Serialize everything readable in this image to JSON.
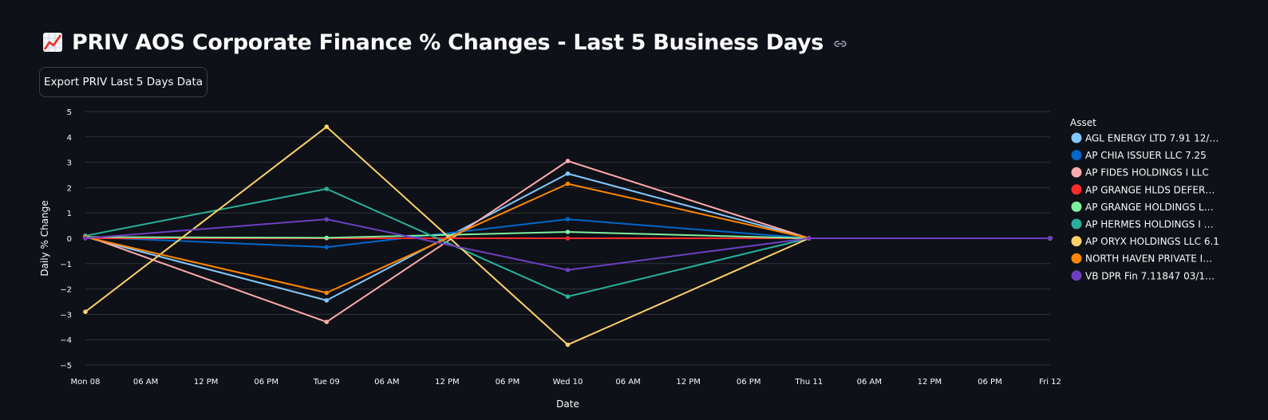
{
  "header": {
    "title": "PRIV AOS Corporate Finance % Changes - Last 5 Business Days",
    "emoji_icon": "chart-increasing-icon",
    "link_icon": "link-icon"
  },
  "toolbar": {
    "export_label": "Export PRIV Last 5 Days Data"
  },
  "chart_data": {
    "type": "line",
    "title": "",
    "xlabel": "Date",
    "ylabel": "Daily % Change",
    "ylim": [
      -5,
      5
    ],
    "yticks": [
      -5,
      -4,
      -3,
      -2,
      -1,
      0,
      1,
      2,
      3,
      4,
      5
    ],
    "ytick_labels": [
      "−5",
      "−4",
      "−3",
      "−2",
      "−1",
      "0",
      "1",
      "2",
      "3",
      "4",
      "5"
    ],
    "grid": true,
    "x_day_range": [
      0,
      4
    ],
    "xticks": [
      {
        "day": 0,
        "label": "Mon 08"
      },
      {
        "day": 0.25,
        "label": "06 AM"
      },
      {
        "day": 0.5,
        "label": "12 PM"
      },
      {
        "day": 0.75,
        "label": "06 PM"
      },
      {
        "day": 1,
        "label": "Tue 09"
      },
      {
        "day": 1.25,
        "label": "06 AM"
      },
      {
        "day": 1.5,
        "label": "12 PM"
      },
      {
        "day": 1.75,
        "label": "06 PM"
      },
      {
        "day": 2,
        "label": "Wed 10"
      },
      {
        "day": 2.25,
        "label": "06 AM"
      },
      {
        "day": 2.5,
        "label": "12 PM"
      },
      {
        "day": 2.75,
        "label": "06 PM"
      },
      {
        "day": 3,
        "label": "Thu 11"
      },
      {
        "day": 3.25,
        "label": "06 AM"
      },
      {
        "day": 3.5,
        "label": "12 PM"
      },
      {
        "day": 3.75,
        "label": "06 PM"
      },
      {
        "day": 4,
        "label": "Fri 12"
      }
    ],
    "x": [
      0,
      1,
      2,
      3,
      4
    ],
    "legend_title": "Asset",
    "legend_position": "right",
    "series": [
      {
        "name": "AGL ENERGY LTD 7.91 12/…",
        "color": "#83c9ff",
        "values": [
          0.05,
          -2.45,
          2.55,
          0,
          0
        ]
      },
      {
        "name": "AP CHIA ISSUER LLC 7.25",
        "color": "#0068c9",
        "values": [
          0.05,
          -0.35,
          0.75,
          0,
          0
        ]
      },
      {
        "name": "AP FIDES HOLDINGS I LLC",
        "color": "#ffabab",
        "values": [
          0.1,
          -3.3,
          3.05,
          0,
          0
        ]
      },
      {
        "name": "AP GRANGE HLDS DEFER…",
        "color": "#ff2b2b",
        "values": [
          0,
          0,
          0,
          0,
          0
        ]
      },
      {
        "name": "AP GRANGE HOLDINGS L…",
        "color": "#7defa1",
        "values": [
          0.05,
          0.02,
          0.25,
          0,
          0
        ]
      },
      {
        "name": "AP HERMES HOLDINGS I …",
        "color": "#29b09d",
        "values": [
          0.1,
          1.95,
          -2.3,
          0,
          0
        ]
      },
      {
        "name": "AP ORYX HOLDINGS LLC 6.1",
        "color": "#ffd16a",
        "values": [
          -2.9,
          4.4,
          -4.2,
          0,
          0
        ]
      },
      {
        "name": "NORTH HAVEN PRIVATE I…",
        "color": "#ff8700",
        "values": [
          0.05,
          -2.15,
          2.15,
          0,
          0
        ]
      },
      {
        "name": "VB DPR Fin 7.11847 03/1…",
        "color": "#6d3fc0",
        "values": [
          0,
          0.75,
          -1.25,
          0,
          0
        ]
      }
    ]
  }
}
